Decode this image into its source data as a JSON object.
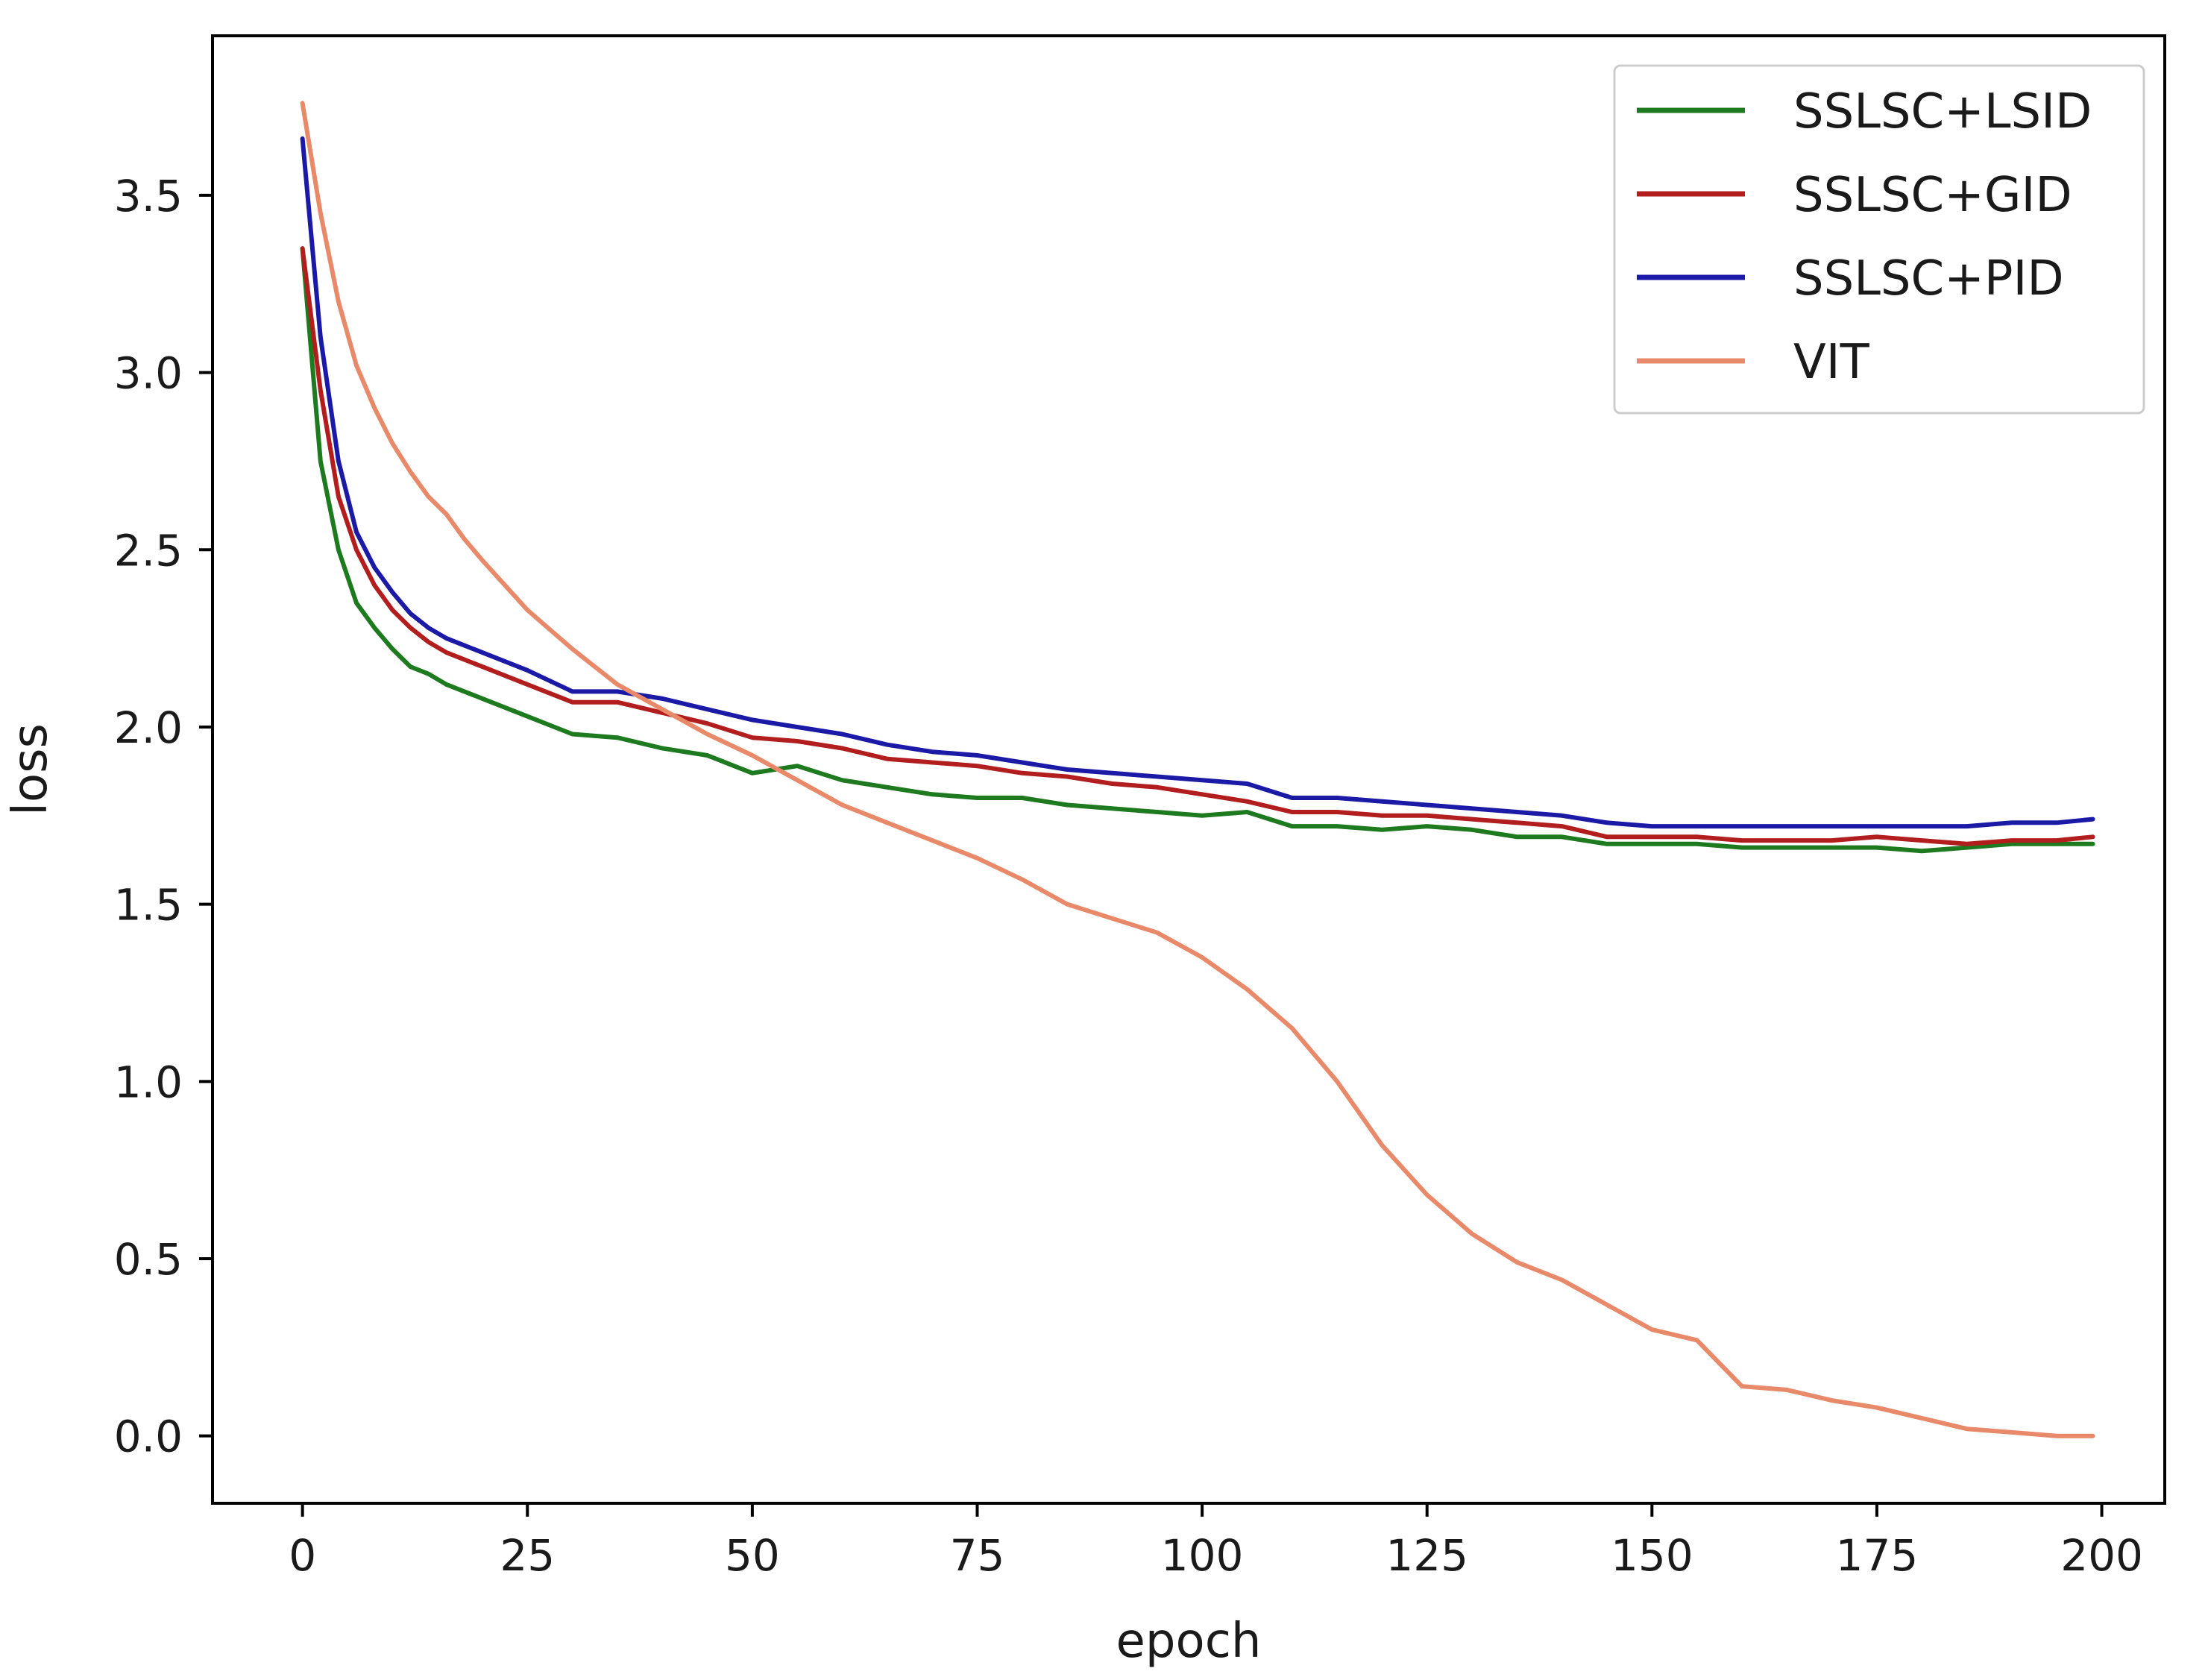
{
  "chart_data": {
    "type": "line",
    "title": "",
    "xlabel": "epoch",
    "ylabel": "loss",
    "xlim": [
      -10,
      207
    ],
    "ylim": [
      -0.19,
      3.95
    ],
    "xticks": [
      0,
      25,
      50,
      75,
      100,
      125,
      150,
      175,
      200
    ],
    "xtick_labels": [
      "0",
      "25",
      "50",
      "75",
      "100",
      "125",
      "150",
      "175",
      "200"
    ],
    "yticks": [
      0.0,
      0.5,
      1.0,
      1.5,
      2.0,
      2.5,
      3.0,
      3.5
    ],
    "ytick_labels": [
      "0.0",
      "0.5",
      "1.0",
      "1.5",
      "2.0",
      "2.5",
      "3.0",
      "3.5"
    ],
    "grid": false,
    "legend_position": "top-right",
    "series": [
      {
        "name": "SSLSC+LSID",
        "color": "#1e7a1e",
        "x": [
          0,
          2,
          4,
          6,
          8,
          10,
          12,
          14,
          16,
          18,
          20,
          25,
          30,
          35,
          40,
          45,
          50,
          55,
          60,
          65,
          70,
          75,
          80,
          85,
          90,
          95,
          100,
          105,
          110,
          115,
          120,
          125,
          130,
          135,
          140,
          145,
          150,
          155,
          160,
          165,
          170,
          175,
          180,
          185,
          190,
          195,
          199
        ],
        "y": [
          3.35,
          2.75,
          2.5,
          2.35,
          2.28,
          2.22,
          2.17,
          2.15,
          2.12,
          2.1,
          2.08,
          2.03,
          1.98,
          1.97,
          1.94,
          1.92,
          1.87,
          1.89,
          1.85,
          1.83,
          1.81,
          1.8,
          1.8,
          1.78,
          1.77,
          1.76,
          1.75,
          1.76,
          1.72,
          1.72,
          1.71,
          1.72,
          1.71,
          1.69,
          1.69,
          1.67,
          1.67,
          1.67,
          1.66,
          1.66,
          1.66,
          1.66,
          1.65,
          1.66,
          1.67,
          1.67,
          1.67
        ]
      },
      {
        "name": "SSLSC+GID",
        "color": "#b21e1e",
        "x": [
          0,
          2,
          4,
          6,
          8,
          10,
          12,
          14,
          16,
          18,
          20,
          25,
          30,
          35,
          40,
          45,
          50,
          55,
          60,
          65,
          70,
          75,
          80,
          85,
          90,
          95,
          100,
          105,
          110,
          115,
          120,
          125,
          130,
          135,
          140,
          145,
          150,
          155,
          160,
          165,
          170,
          175,
          180,
          185,
          190,
          195,
          199
        ],
        "y": [
          3.35,
          2.95,
          2.65,
          2.5,
          2.4,
          2.33,
          2.28,
          2.24,
          2.21,
          2.19,
          2.17,
          2.12,
          2.07,
          2.07,
          2.04,
          2.01,
          1.97,
          1.96,
          1.94,
          1.91,
          1.9,
          1.89,
          1.87,
          1.86,
          1.84,
          1.83,
          1.81,
          1.79,
          1.76,
          1.76,
          1.75,
          1.75,
          1.74,
          1.73,
          1.72,
          1.69,
          1.69,
          1.69,
          1.68,
          1.68,
          1.68,
          1.69,
          1.68,
          1.67,
          1.68,
          1.68,
          1.69
        ]
      },
      {
        "name": "SSLSC+PID",
        "color": "#1a1aa6",
        "x": [
          0,
          2,
          4,
          6,
          8,
          10,
          12,
          14,
          16,
          18,
          20,
          25,
          30,
          35,
          40,
          45,
          50,
          55,
          60,
          65,
          70,
          75,
          80,
          85,
          90,
          95,
          100,
          105,
          110,
          115,
          120,
          125,
          130,
          135,
          140,
          145,
          150,
          155,
          160,
          165,
          170,
          175,
          180,
          185,
          190,
          195,
          199
        ],
        "y": [
          3.66,
          3.1,
          2.75,
          2.55,
          2.45,
          2.38,
          2.32,
          2.28,
          2.25,
          2.23,
          2.21,
          2.16,
          2.1,
          2.1,
          2.08,
          2.05,
          2.02,
          2.0,
          1.98,
          1.95,
          1.93,
          1.92,
          1.9,
          1.88,
          1.87,
          1.86,
          1.85,
          1.84,
          1.8,
          1.8,
          1.79,
          1.78,
          1.77,
          1.76,
          1.75,
          1.73,
          1.72,
          1.72,
          1.72,
          1.72,
          1.72,
          1.72,
          1.72,
          1.72,
          1.73,
          1.73,
          1.74
        ]
      },
      {
        "name": "VIT",
        "color": "#e8896a",
        "x": [
          0,
          2,
          4,
          6,
          8,
          10,
          12,
          14,
          16,
          18,
          20,
          25,
          30,
          35,
          40,
          45,
          50,
          55,
          60,
          65,
          70,
          75,
          80,
          85,
          90,
          95,
          100,
          105,
          110,
          115,
          120,
          125,
          130,
          135,
          140,
          145,
          150,
          155,
          160,
          165,
          170,
          175,
          180,
          185,
          190,
          195,
          199
        ],
        "y": [
          3.76,
          3.45,
          3.2,
          3.02,
          2.9,
          2.8,
          2.72,
          2.65,
          2.6,
          2.53,
          2.47,
          2.33,
          2.22,
          2.12,
          2.05,
          1.98,
          1.92,
          1.85,
          1.78,
          1.73,
          1.68,
          1.63,
          1.57,
          1.5,
          1.46,
          1.42,
          1.35,
          1.26,
          1.15,
          1.0,
          0.82,
          0.68,
          0.57,
          0.49,
          0.44,
          0.37,
          0.3,
          0.27,
          0.14,
          0.13,
          0.1,
          0.08,
          0.05,
          0.02,
          0.01,
          0.0,
          0.0
        ]
      }
    ]
  }
}
